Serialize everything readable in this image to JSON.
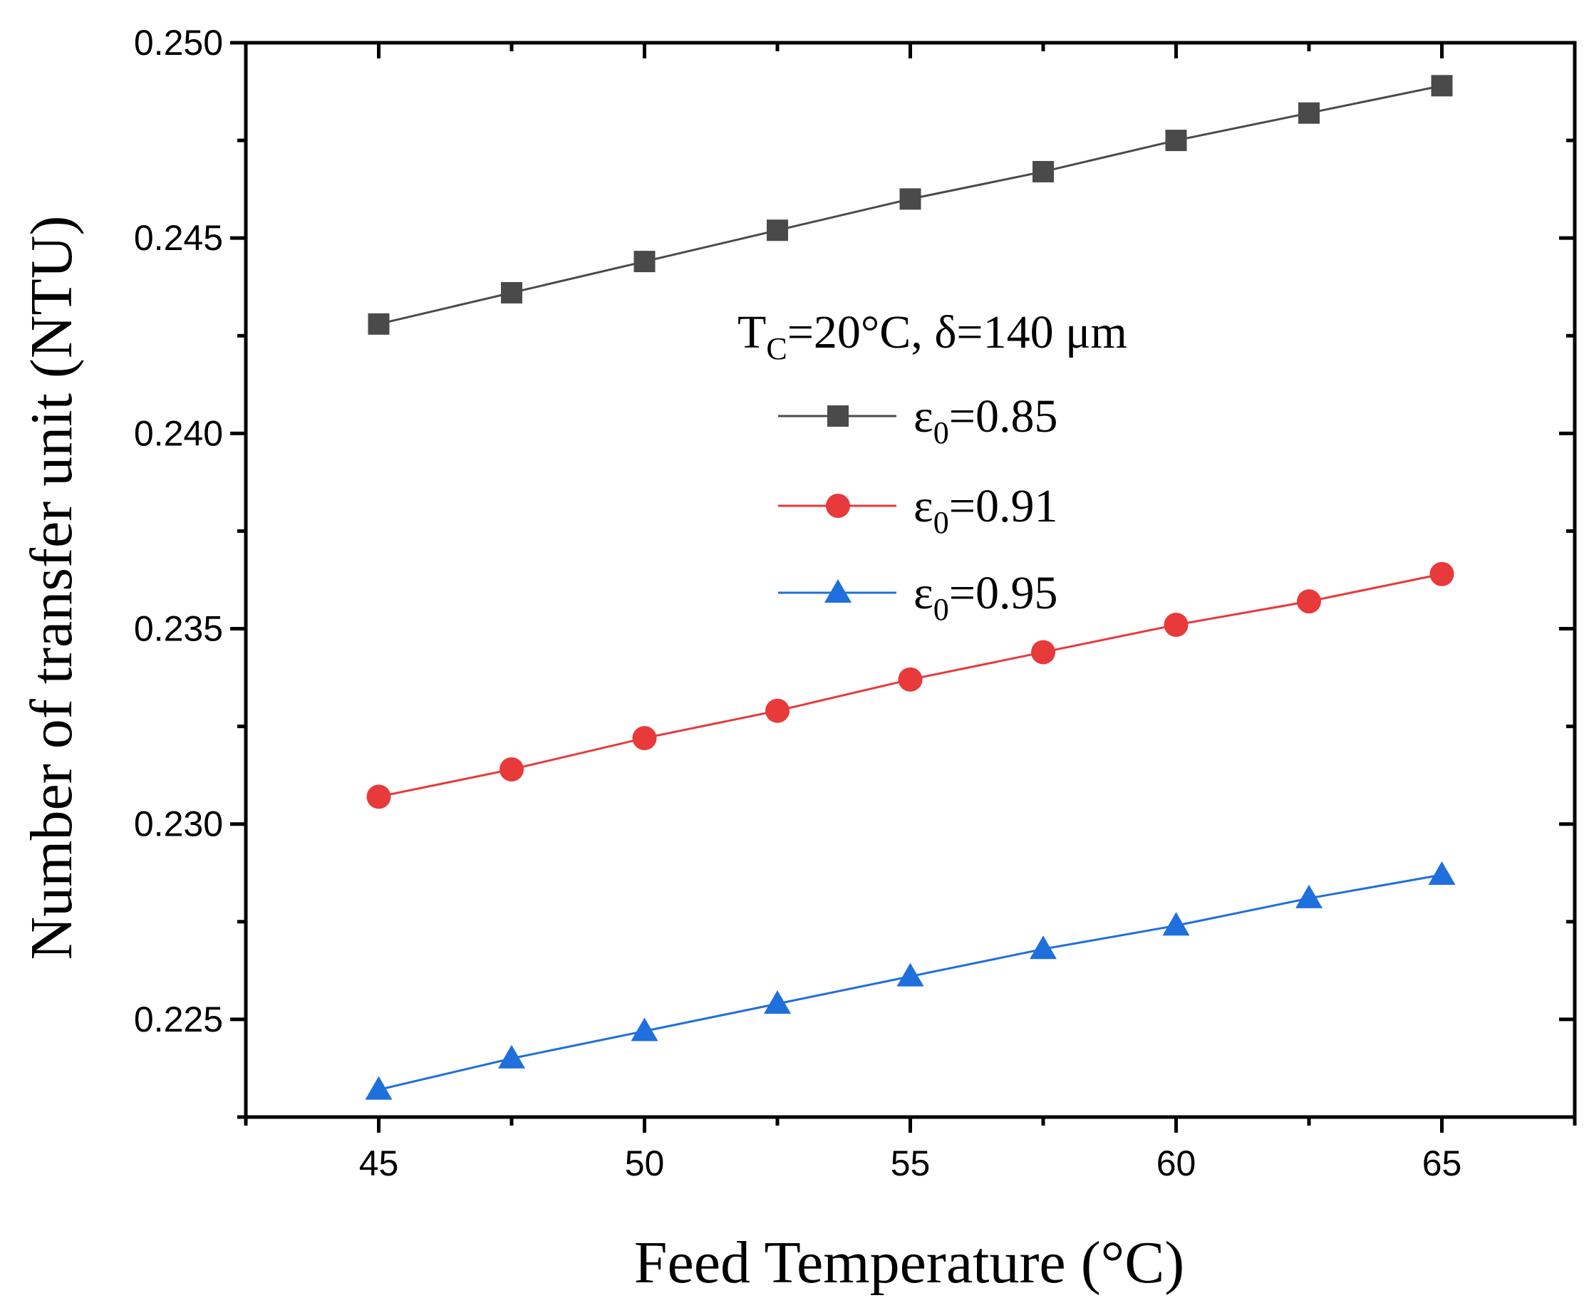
{
  "chart_data": {
    "type": "line",
    "title": "",
    "xlabel": "Feed Temperature (°C)",
    "ylabel": "Number of transfer unit (NTU)",
    "xlim": [
      42.5,
      67.5
    ],
    "ylim": [
      0.2225,
      0.25
    ],
    "xticks": [
      45,
      50,
      55,
      60,
      65
    ],
    "yticks": [
      0.225,
      0.23,
      0.235,
      0.24,
      0.245,
      0.25
    ],
    "xtick_labels": [
      "45",
      "50",
      "55",
      "60",
      "65"
    ],
    "ytick_labels": [
      "0.225",
      "0.230",
      "0.235",
      "0.240",
      "0.245",
      "0.250"
    ],
    "grid": false,
    "legend": {
      "position": "upper-center",
      "title_main": "T",
      "title_sub": "C",
      "title_rest": "=20°C, δ=140 μm"
    },
    "x": [
      45,
      47.5,
      50,
      52.5,
      55,
      57.5,
      60,
      62.5,
      65
    ],
    "series": [
      {
        "name": "ε0=0.85",
        "label_main": "ε",
        "label_sub": "0",
        "label_rest": "=0.85",
        "color": "#4a4a4a",
        "marker": "square",
        "values": [
          0.2428,
          0.2436,
          0.2444,
          0.2452,
          0.246,
          0.2467,
          0.2475,
          0.2482,
          0.2489
        ]
      },
      {
        "name": "ε0=0.91",
        "label_main": "ε",
        "label_sub": "0",
        "label_rest": "=0.91",
        "color": "#e8393b",
        "marker": "circle",
        "values": [
          0.2307,
          0.2314,
          0.2322,
          0.2329,
          0.2337,
          0.2344,
          0.2351,
          0.2357,
          0.2364
        ]
      },
      {
        "name": "ε0=0.95",
        "label_main": "ε",
        "label_sub": "0",
        "label_rest": "=0.95",
        "color": "#1f6fdc",
        "marker": "triangle",
        "values": [
          0.2232,
          0.224,
          0.2247,
          0.2254,
          0.2261,
          0.2268,
          0.2274,
          0.2281,
          0.2287
        ]
      }
    ]
  }
}
